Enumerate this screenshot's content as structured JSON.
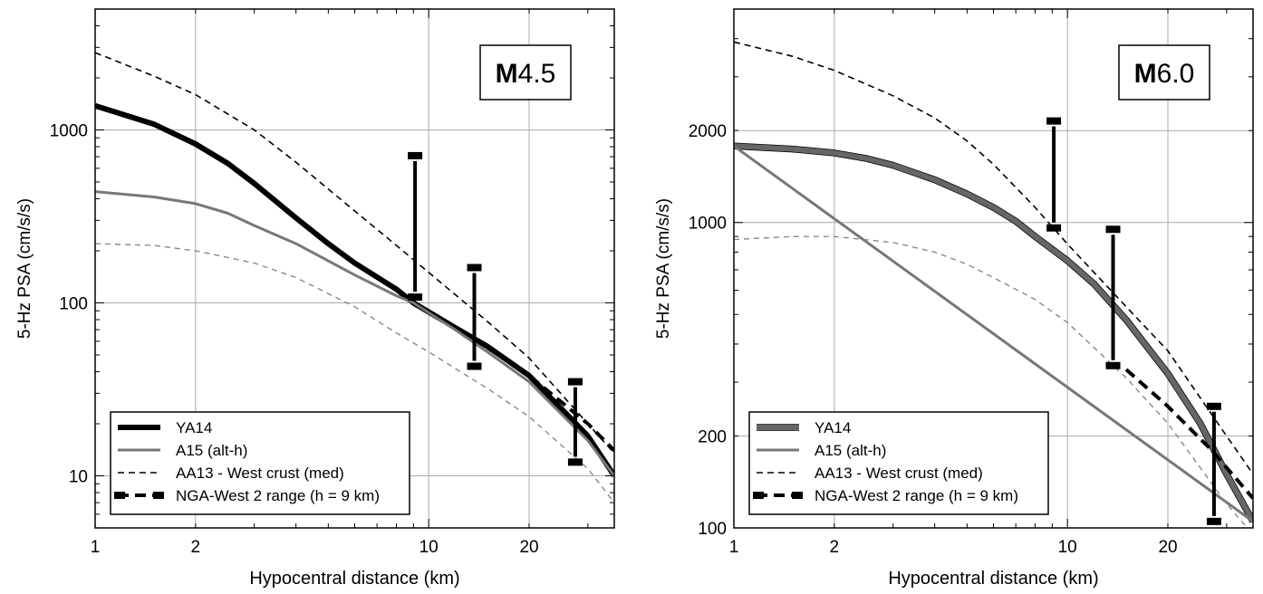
{
  "chart_data": [
    {
      "type": "line",
      "x_scale": "log",
      "y_scale": "log",
      "xlabel": "Hypocentral distance (km)",
      "ylabel": "5-Hz PSA (cm/s/s)",
      "xlim": [
        1,
        36
      ],
      "ylim": [
        5,
        5000
      ],
      "x_ticks": [
        1,
        2,
        10,
        20
      ],
      "y_ticks": [
        10,
        100,
        1000
      ],
      "grid": true,
      "annotation": {
        "bold": "M",
        "rest": "4.5"
      },
      "legend_position": "bottom-left",
      "series": [
        {
          "name": "YA14",
          "style": "solid-thick",
          "color": "#000000",
          "x": [
            1,
            1.5,
            2,
            2.5,
            3,
            4,
            5,
            6,
            8,
            9,
            12,
            15,
            20,
            30,
            36
          ],
          "y": [
            1380,
            1080,
            830,
            640,
            490,
            310,
            220,
            170,
            120,
            100,
            72,
            56,
            38,
            17,
            10
          ]
        },
        {
          "name": "A15 (alt-h)",
          "style": "solid",
          "color": "#777777",
          "x": [
            1,
            1.5,
            2,
            2.5,
            3,
            4,
            5,
            6,
            8,
            9,
            12,
            15,
            20,
            30,
            36
          ],
          "y": [
            440,
            410,
            375,
            330,
            280,
            220,
            175,
            145,
            110,
            100,
            70,
            52,
            35,
            16,
            10
          ]
        },
        {
          "name": "AA13 - West crust (med)",
          "style": "dashed",
          "color": "#000000",
          "x": [
            1,
            1.5,
            2,
            3,
            4,
            6,
            8,
            10,
            15,
            20,
            30,
            36
          ],
          "y": [
            2800,
            2050,
            1600,
            1000,
            650,
            340,
            215,
            150,
            78,
            48,
            20,
            13.5
          ]
        },
        {
          "name": "",
          "style": "dashed-thin",
          "color": "#888888",
          "x": [
            1,
            1.5,
            2,
            3,
            4,
            6,
            8,
            10,
            15,
            20,
            30,
            36
          ],
          "y": [
            220,
            215,
            200,
            170,
            140,
            95,
            67,
            52,
            32,
            22,
            11,
            7
          ]
        },
        {
          "name": "NGA-West 2 range (h = 9 km)",
          "style": "dashed-thick",
          "color": "#000000",
          "x": [
            15,
            20,
            30,
            36
          ],
          "y": [
            55,
            38,
            20,
            14
          ]
        }
      ],
      "range_bars": [
        {
          "x": 9.1,
          "low": 108,
          "high": 710
        },
        {
          "x": 13.7,
          "low": 43,
          "high": 160
        },
        {
          "x": 27.5,
          "low": 12,
          "high": 35
        }
      ]
    },
    {
      "type": "line",
      "x_scale": "log",
      "y_scale": "log",
      "xlabel": "Hypocentral distance (km)",
      "ylabel": "5-Hz PSA (cm/s/s)",
      "xlim": [
        1,
        36
      ],
      "ylim": [
        100,
        5000
      ],
      "x_ticks": [
        1,
        2,
        10,
        20
      ],
      "y_ticks": [
        100,
        200,
        1000,
        2000
      ],
      "grid": true,
      "annotation": {
        "bold": "M",
        "rest": "6.0"
      },
      "legend_position": "bottom-left",
      "series": [
        {
          "name": "YA14",
          "style": "solid-thick-outlined",
          "color": "#666666",
          "x": [
            1,
            1.5,
            2,
            2.5,
            3,
            4,
            5,
            6,
            7,
            8,
            10,
            12,
            15,
            20,
            25,
            30,
            36
          ],
          "y": [
            1780,
            1740,
            1690,
            1620,
            1540,
            1380,
            1240,
            1120,
            1010,
            900,
            750,
            630,
            480,
            320,
            220,
            150,
            105
          ]
        },
        {
          "name": "A15 (alt-h)",
          "style": "solid",
          "color": "#777777",
          "x": [
            1,
            36
          ],
          "y": [
            1780,
            105
          ]
        },
        {
          "name": "AA13 - West crust (med)",
          "style": "dashed",
          "color": "#000000",
          "x": [
            1,
            1.5,
            2,
            3,
            4,
            5,
            6,
            8,
            10,
            15,
            20,
            30,
            36
          ],
          "y": [
            3900,
            3500,
            3150,
            2600,
            2200,
            1850,
            1550,
            1120,
            850,
            530,
            380,
            200,
            150
          ]
        },
        {
          "name": "",
          "style": "dashed-thin",
          "color": "#888888",
          "x": [
            1,
            1.5,
            2,
            3,
            4,
            5,
            6,
            8,
            10,
            15,
            20,
            30,
            36
          ],
          "y": [
            880,
            900,
            900,
            860,
            800,
            730,
            660,
            560,
            470,
            310,
            220,
            120,
            95
          ]
        },
        {
          "name": "NGA-West 2 range (h = 9 km)",
          "style": "dashed-thick",
          "color": "#000000",
          "x": [
            15,
            20,
            27,
            36
          ],
          "y": [
            330,
            250,
            180,
            125
          ]
        }
      ],
      "range_bars": [
        {
          "x": 9.1,
          "low": 960,
          "high": 2150
        },
        {
          "x": 13.7,
          "low": 340,
          "high": 950
        },
        {
          "x": 27.5,
          "low": 105,
          "high": 250
        }
      ]
    }
  ]
}
